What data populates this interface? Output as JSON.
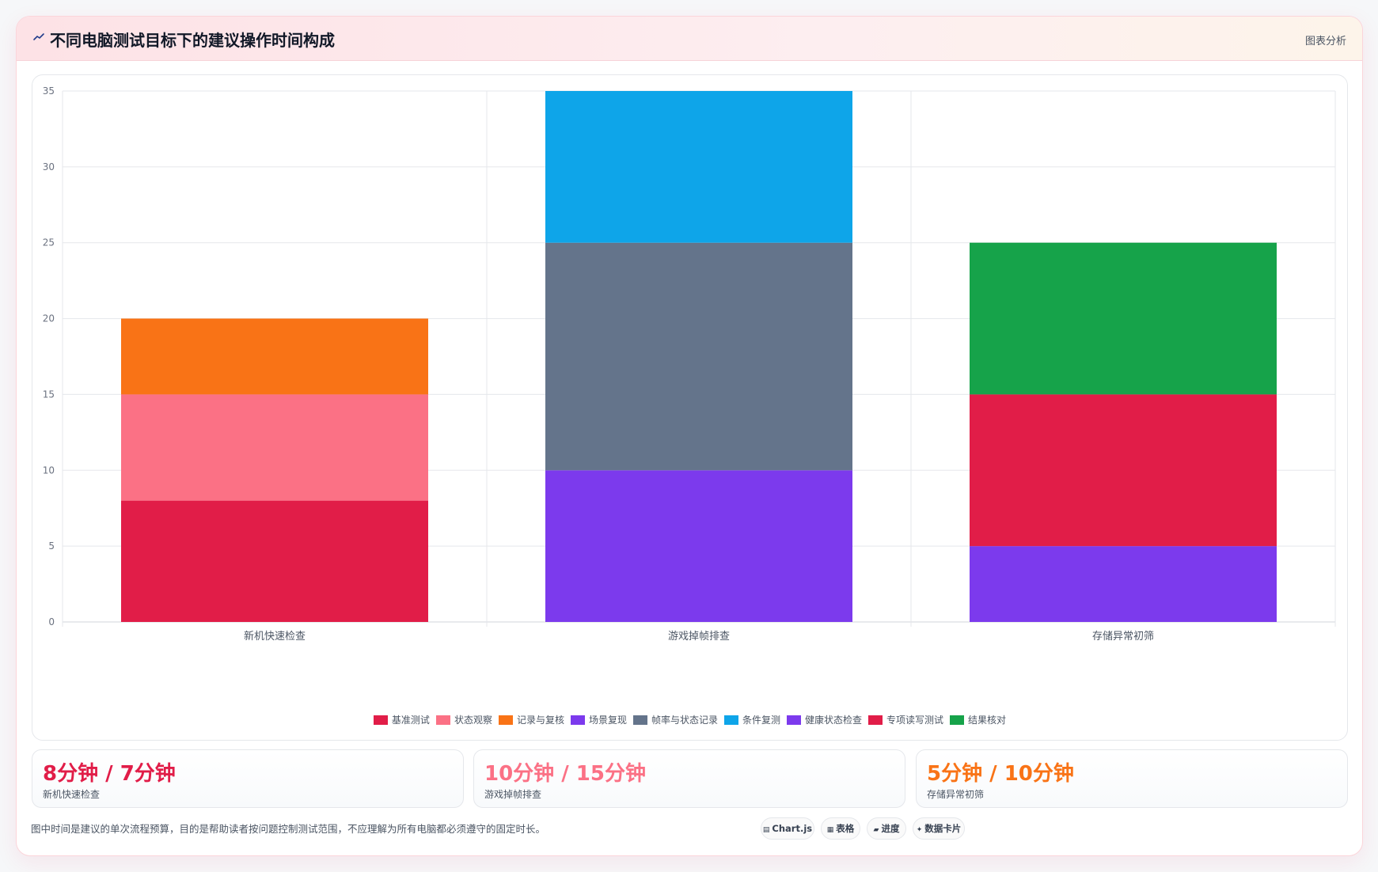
{
  "header": {
    "title": "不同电脑测试目标下的建议操作时间构成",
    "action_label": "图表分析"
  },
  "colors": {
    "基准测试": "#e11d48",
    "状态观察": "#fb7185",
    "记录与复核": "#f97316",
    "场景复现": "#7c3aed",
    "帧率与状态记录": "#64748b",
    "条件复测": "#0ea5e9",
    "健康状态检查": "#7c3aed",
    "专项读写测试": "#e11d48",
    "结果核对": "#16a34a"
  },
  "chart_data": {
    "type": "bar",
    "stacked": true,
    "categories": [
      "新机快速检查",
      "游戏掉帧排查",
      "存储异常初筛"
    ],
    "series": [
      {
        "name": "基准测试",
        "values": [
          8,
          0,
          0
        ]
      },
      {
        "name": "状态观察",
        "values": [
          7,
          0,
          0
        ]
      },
      {
        "name": "记录与复核",
        "values": [
          5,
          0,
          0
        ]
      },
      {
        "name": "场景复现",
        "values": [
          0,
          10,
          0
        ]
      },
      {
        "name": "帧率与状态记录",
        "values": [
          0,
          15,
          0
        ]
      },
      {
        "name": "条件复测",
        "values": [
          0,
          10,
          0
        ]
      },
      {
        "name": "健康状态检查",
        "values": [
          0,
          0,
          5
        ]
      },
      {
        "name": "专项读写测试",
        "values": [
          0,
          0,
          10
        ]
      },
      {
        "name": "结果核对",
        "values": [
          0,
          0,
          10
        ]
      }
    ],
    "ylim": [
      0,
      35
    ],
    "yticks": [
      0,
      5,
      10,
      15,
      20,
      25,
      30,
      35
    ],
    "grid": true,
    "legend_position": "bottom"
  },
  "stats": [
    {
      "value": "8分钟 / 7分钟",
      "label": "新机快速检查",
      "color": "#e11d48"
    },
    {
      "value": "10分钟 / 15分钟",
      "label": "游戏掉帧排查",
      "color": "#fb7185"
    },
    {
      "value": "5分钟 / 10分钟",
      "label": "存储异常初筛",
      "color": "#f97316"
    }
  ],
  "footnote": "图中时间是建议的单次流程预算，目的是帮助读者按问题控制测试范围，不应理解为所有电脑都必须遵守的固定时长。",
  "chips": [
    {
      "icon": "▤",
      "label": "Chart.js"
    },
    {
      "icon": "▦",
      "label": "表格"
    },
    {
      "icon": "▰",
      "label": "进度"
    },
    {
      "icon": "✦",
      "label": "数据卡片"
    }
  ]
}
